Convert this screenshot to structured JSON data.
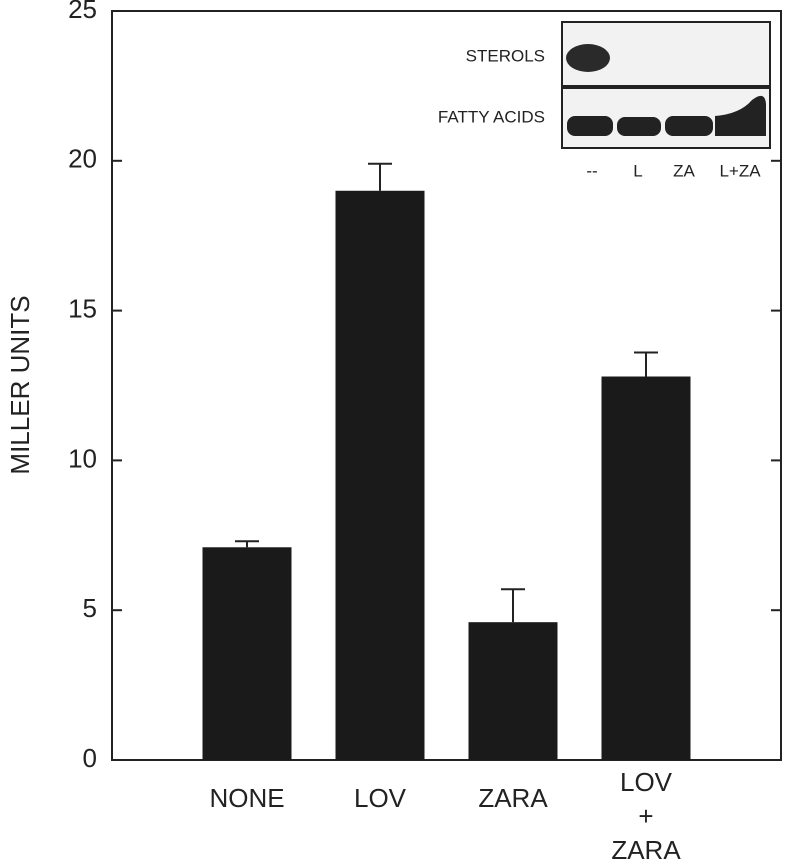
{
  "chart_data": {
    "type": "bar",
    "y_label": "MILLER UNITS",
    "categories": [
      "NONE",
      "LOV",
      "ZARA",
      "LOV\n+\nZARA"
    ],
    "values": [
      7.1,
      19.0,
      4.6,
      12.8
    ],
    "errors": [
      0.2,
      0.9,
      1.1,
      0.8
    ],
    "color": "#1a1a1a",
    "ylim": [
      0,
      25
    ],
    "yticks": [
      0,
      5,
      10,
      15,
      20,
      25
    ],
    "inset": {
      "rows": [
        "STEROLS",
        "FATTY ACIDS"
      ],
      "lanes": [
        "--",
        "L",
        "ZA",
        "L+ZA"
      ]
    }
  }
}
